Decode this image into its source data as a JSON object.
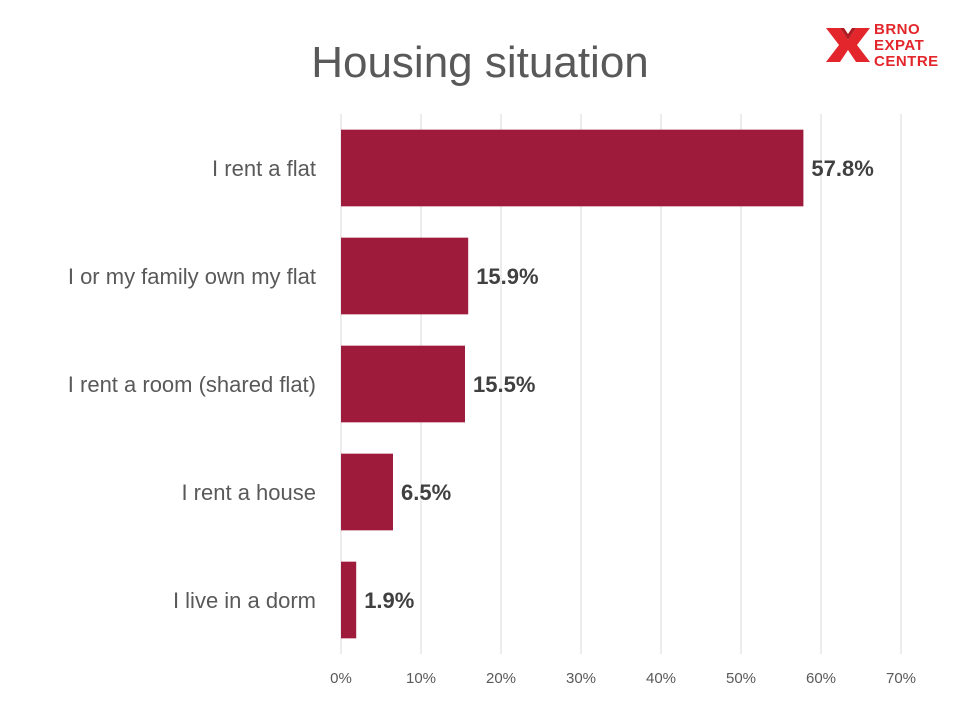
{
  "logo": {
    "lines": [
      "BRNO",
      "EXPAT",
      "CENTRE"
    ],
    "icon": "brno-x-icon",
    "color": "#e3262b"
  },
  "chart_data": {
    "type": "bar",
    "orientation": "horizontal",
    "title": "Housing situation",
    "categories": [
      "I rent a flat",
      "I or my family own my flat",
      "I rent a room (shared flat)",
      "I rent a house",
      "I live in a dorm"
    ],
    "values": [
      57.8,
      15.9,
      15.5,
      6.5,
      1.9
    ],
    "value_labels": [
      "57.8%",
      "15.9%",
      "15.5%",
      "6.5%",
      "1.9%"
    ],
    "xlim": [
      0,
      70
    ],
    "xticks": [
      "0%",
      "10%",
      "20%",
      "30%",
      "40%",
      "50%",
      "60%",
      "70%"
    ],
    "grid": "vertical",
    "bar_color": "#9e1b3b"
  }
}
